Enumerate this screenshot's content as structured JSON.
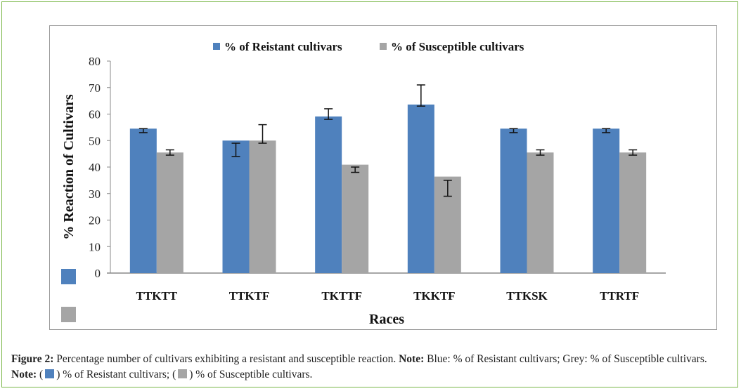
{
  "chart_data": {
    "type": "bar",
    "title": "",
    "xlabel": "Races",
    "ylabel": "%  Reaction of  Cultivars",
    "ylim": [
      0,
      80
    ],
    "yticks": [
      0,
      10,
      20,
      30,
      40,
      50,
      60,
      70,
      80
    ],
    "grid": false,
    "legend_position": "top",
    "categories": [
      "TTKTT",
      "TTKTF",
      "TKTTF",
      "TKKTF",
      "TTKSK",
      "TTRTF"
    ],
    "series": [
      {
        "name": "%  of Reistant cultivars",
        "color": "#4f81bd",
        "values": [
          54.5,
          50,
          59.1,
          63.6,
          54.5,
          54.5
        ],
        "error_ranges": [
          [
            53,
            54.5
          ],
          [
            44,
            49
          ],
          [
            58,
            62
          ],
          [
            63,
            71
          ],
          [
            53,
            54.5
          ],
          [
            53,
            54.5
          ]
        ]
      },
      {
        "name": "% of Susceptible cultivars",
        "color": "#a5a5a5",
        "values": [
          45.5,
          50,
          40.9,
          36.4,
          45.5,
          45.5
        ],
        "error_ranges": [
          [
            44.5,
            46.5
          ],
          [
            49,
            56
          ],
          [
            38,
            40
          ],
          [
            29,
            35
          ],
          [
            44.5,
            46.5
          ],
          [
            44.5,
            46.5
          ]
        ]
      }
    ]
  },
  "caption": {
    "fig_label": "Figure 2:",
    "text1": " Percentage number of cultivars exhibiting a resistant and susceptible reaction.  ",
    "note1_label": "Note:",
    "text2": " Blue: % of Resistant cultivars; Grey: % of Susceptible cultivars. ",
    "note2_label": "Note:",
    "open1": " (",
    "text3": ") % of Resistant cultivars; (",
    "text4": ") % of Susceptible cultivars."
  }
}
